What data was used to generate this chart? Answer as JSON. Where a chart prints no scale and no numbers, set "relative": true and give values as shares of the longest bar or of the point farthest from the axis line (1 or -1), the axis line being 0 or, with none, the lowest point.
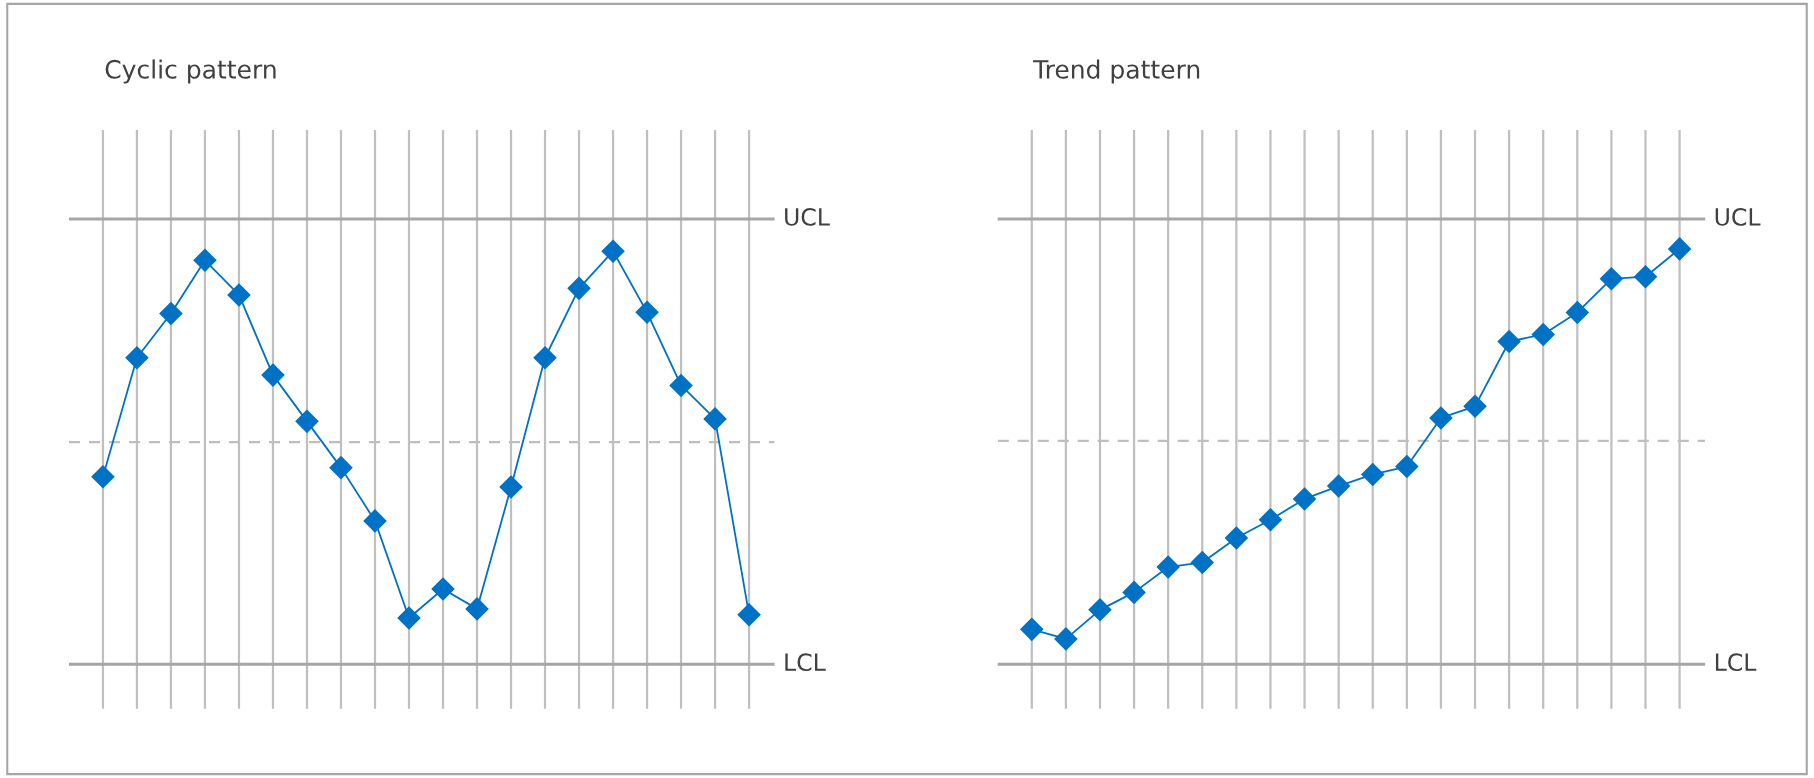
{
  "chart_data": [
    {
      "type": "line",
      "title": "Cyclic pattern",
      "relative": true,
      "categories": [
        null,
        null,
        null,
        null,
        null,
        null,
        null,
        null,
        null,
        null,
        null,
        null,
        null,
        null,
        null,
        null,
        null,
        null,
        null,
        null
      ],
      "grid": "x",
      "marker": "diamond",
      "line_style": "solid",
      "legend": false,
      "series": [
        {
          "color": "#0072c6",
          "values": [
            0.454,
            0.742,
            0.849,
            0.978,
            0.894,
            0.7,
            0.588,
            0.476,
            0.347,
            0.112,
            0.182,
            0.134,
            0.429,
            0.742,
            0.91,
            1,
            0.852,
            0.675,
            0.594,
            0.12
          ]
        }
      ],
      "ref_lines": [
        {
          "axis": "y",
          "value": 1.078,
          "label": "UCL",
          "color": "#a6a6a6",
          "line_style": "solid"
        },
        {
          "axis": "y",
          "value": 0.538,
          "label": null,
          "color": "#bfbfbf",
          "line_style": "dashed"
        },
        {
          "axis": "y",
          "value": 0,
          "label": "LCL",
          "color": "#a6a6a6",
          "line_style": "solid"
        }
      ]
    },
    {
      "type": "line",
      "title": "Trend pattern",
      "relative": true,
      "categories": [
        null,
        null,
        null,
        null,
        null,
        null,
        null,
        null,
        null,
        null,
        null,
        null,
        null,
        null,
        null,
        null,
        null,
        null,
        null,
        null
      ],
      "grid": "x",
      "marker": "diamond",
      "line_style": "solid",
      "legend": false,
      "series": [
        {
          "color": "#0072c6",
          "values": [
            0.084,
            0.061,
            0.131,
            0.173,
            0.234,
            0.245,
            0.304,
            0.348,
            0.398,
            0.429,
            0.457,
            0.476,
            0.593,
            0.621,
            0.777,
            0.794,
            0.847,
            0.928,
            0.933,
            1
          ]
        }
      ],
      "ref_lines": [
        {
          "axis": "y",
          "value": 1.072,
          "label": "UCL",
          "color": "#a6a6a6",
          "line_style": "solid"
        },
        {
          "axis": "y",
          "value": 0.538,
          "label": null,
          "color": "#bfbfbf",
          "line_style": "dashed"
        },
        {
          "axis": "y",
          "value": 0,
          "label": "LCL",
          "color": "#a6a6a6",
          "line_style": "solid"
        }
      ]
    }
  ]
}
